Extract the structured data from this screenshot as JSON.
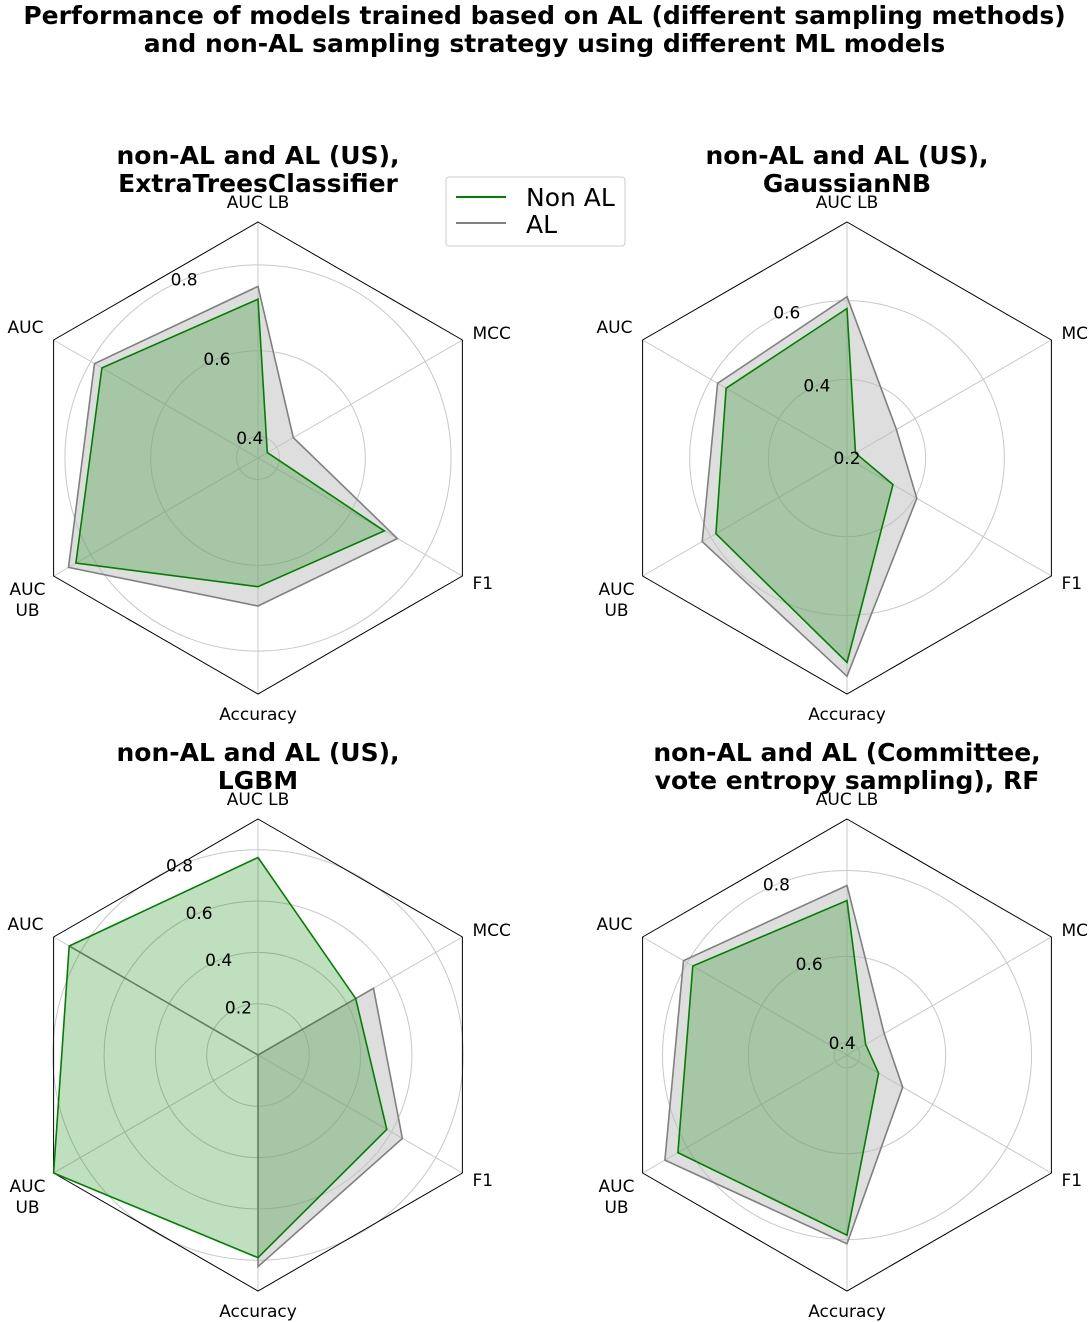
{
  "figure": {
    "title_line1": "Performance of models trained based on AL (different sampling methods)",
    "title_line2": "and non-AL sampling strategy using different ML models"
  },
  "legend": {
    "items": [
      {
        "label": "Non AL",
        "color": "#008000"
      },
      {
        "label": "AL",
        "color": "#808080"
      }
    ]
  },
  "colors": {
    "non_al_line": "#008000",
    "non_al_fill": "#008000",
    "al_line": "#808080",
    "al_fill": "#bdbdbd",
    "grid": "#c8c8c8",
    "frame": "#000000"
  },
  "chart_data": [
    {
      "type": "radar",
      "title_lines": [
        "non-AL and AL (US),",
        "ExtraTreesClassifier"
      ],
      "axes": [
        "AUC LB",
        "MCC",
        "F1",
        "Accuracy",
        "AUC UB",
        "AUC"
      ],
      "axis_label_lines": [
        [
          "AUC LB"
        ],
        [
          "MCC"
        ],
        [
          "F1"
        ],
        [
          "Accuracy"
        ],
        [
          "AUC",
          "UB"
        ],
        [
          "AUC"
        ]
      ],
      "rlim": [
        0.35,
        0.9
      ],
      "rticks": [
        0.4,
        0.6,
        0.8
      ],
      "rtick_labels": [
        "0.4",
        "0.6",
        "0.8"
      ],
      "grid": true,
      "series": [
        {
          "name": "Non AL",
          "values": [
            0.72,
            0.375,
            0.69,
            0.65,
            0.84,
            0.77
          ]
        },
        {
          "name": "AL",
          "values": [
            0.75,
            0.445,
            0.725,
            0.695,
            0.86,
            0.79
          ]
        }
      ]
    },
    {
      "type": "radar",
      "title_lines": [
        "non-AL and AL (US),",
        "GaussianNB"
      ],
      "axes": [
        "AUC LB",
        "MCC",
        "F1",
        "Accuracy",
        "AUC UB",
        "AUC"
      ],
      "axis_label_lines": [
        [
          "AUC LB"
        ],
        [
          "MCC"
        ],
        [
          "F1"
        ],
        [
          "Accuracy"
        ],
        [
          "AUC",
          "UB"
        ],
        [
          "AUC"
        ]
      ],
      "rlim": [
        0.2,
        0.8
      ],
      "rticks": [
        0.2,
        0.4,
        0.6
      ],
      "rtick_labels": [
        "0.2",
        "0.4",
        "0.6"
      ],
      "grid": true,
      "series": [
        {
          "name": "Non AL",
          "values": [
            0.58,
            0.225,
            0.335,
            0.72,
            0.585,
            0.555
          ]
        },
        {
          "name": "AL",
          "values": [
            0.61,
            0.345,
            0.405,
            0.755,
            0.625,
            0.58
          ]
        }
      ]
    },
    {
      "type": "radar",
      "title_lines": [
        "non-AL and AL (US),",
        "LGBM"
      ],
      "axes": [
        "AUC LB",
        "MCC",
        "F1",
        "Accuracy",
        "AUC UB",
        "AUC"
      ],
      "axis_label_lines": [
        [
          "AUC LB"
        ],
        [
          "MCC"
        ],
        [
          "F1"
        ],
        [
          "Accuracy"
        ],
        [
          "AUC",
          "UB"
        ],
        [
          "AUC"
        ]
      ],
      "rlim": [
        0.0,
        0.92
      ],
      "rticks": [
        0.2,
        0.4,
        0.6,
        0.8
      ],
      "rtick_labels": [
        "0.2",
        "0.4",
        "0.6",
        "0.8"
      ],
      "grid": true,
      "series": [
        {
          "name": "Non AL",
          "values": [
            0.77,
            0.44,
            0.58,
            0.79,
            0.92,
            0.85
          ]
        },
        {
          "name": "AL",
          "values": [
            0.0,
            0.52,
            0.65,
            0.825,
            0.0,
            0.85
          ]
        }
      ]
    },
    {
      "type": "radar",
      "title_lines": [
        "non-AL and AL (Committee,",
        "vote entropy sampling), RF"
      ],
      "axes": [
        "AUC LB",
        "MCC",
        "F1",
        "Accuracy",
        "AUC UB",
        "AUC"
      ],
      "axis_label_lines": [
        [
          "AUC LB"
        ],
        [
          "MCC"
        ],
        [
          "F1"
        ],
        [
          "Accuracy"
        ],
        [
          "AUC",
          "UB"
        ],
        [
          "AUC"
        ]
      ],
      "rlim": [
        0.37,
        0.92
      ],
      "rticks": [
        0.4,
        0.6,
        0.8
      ],
      "rtick_labels": [
        "0.4",
        "0.6",
        "0.8"
      ],
      "grid": true,
      "series": [
        {
          "name": "Non AL",
          "values": [
            0.73,
            0.42,
            0.455,
            0.79,
            0.825,
            0.785
          ]
        },
        {
          "name": "AL",
          "values": [
            0.765,
            0.47,
            0.52,
            0.81,
            0.86,
            0.81
          ]
        }
      ]
    }
  ]
}
